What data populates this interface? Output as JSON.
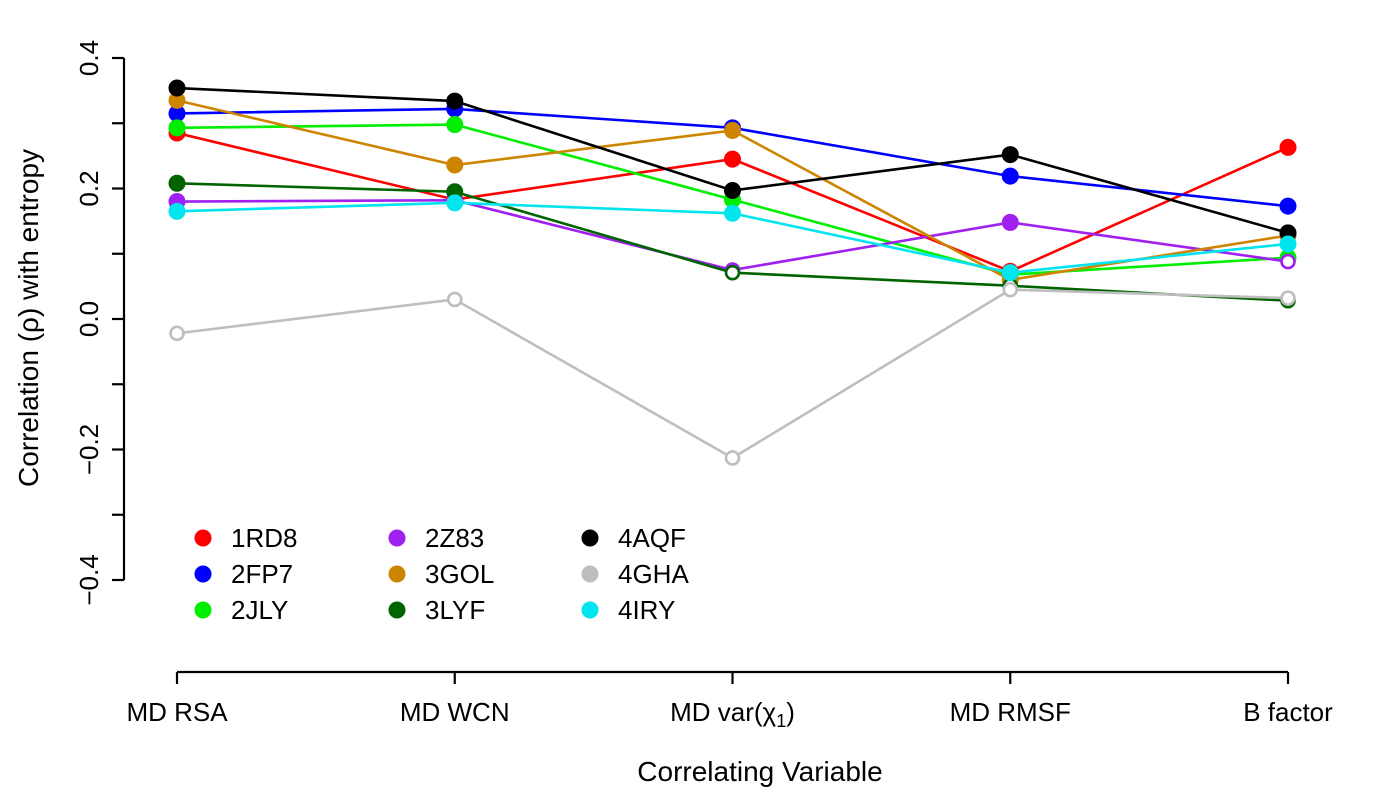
{
  "chart_data": {
    "type": "line",
    "title": "",
    "xlabel": "Correlating Variable",
    "ylabel": "Correlation (ρ) with entropy",
    "categories": [
      "MD RSA",
      "MD WCN",
      "MD var(χ1)",
      "MD RMSF",
      "B factor"
    ],
    "category_parts": [
      {
        "main": "MD RSA",
        "sub": "",
        "close": ""
      },
      {
        "main": "MD WCN",
        "sub": "",
        "close": ""
      },
      {
        "main": "MD var(χ",
        "sub": "1",
        "close": ")"
      },
      {
        "main": "MD RMSF",
        "sub": "",
        "close": ""
      },
      {
        "main": "B factor",
        "sub": "",
        "close": ""
      }
    ],
    "ylim": [
      -0.4,
      0.4
    ],
    "y_ticks": [
      -0.4,
      -0.2,
      0.0,
      0.2,
      0.4
    ],
    "y_tick_labels": [
      "−0.4",
      "−0.2",
      "0.0",
      "0.2",
      "0.4"
    ],
    "grid": false,
    "legend_position": "bottom-left",
    "series": [
      {
        "name": "1RD8",
        "color": "#ff0000",
        "values": [
          0.285,
          0.183,
          0.245,
          0.073,
          0.263
        ],
        "filled": [
          true,
          true,
          true,
          true,
          true
        ]
      },
      {
        "name": "2FP7",
        "color": "#0000ff",
        "values": [
          0.315,
          0.322,
          0.293,
          0.219,
          0.173
        ],
        "filled": [
          true,
          true,
          true,
          true,
          true
        ]
      },
      {
        "name": "2JLY",
        "color": "#00ee00",
        "values": [
          0.293,
          0.298,
          0.183,
          0.068,
          0.094
        ],
        "filled": [
          true,
          true,
          true,
          true,
          true
        ]
      },
      {
        "name": "2Z83",
        "color": "#a020f0",
        "values": [
          0.18,
          0.182,
          0.075,
          0.148,
          0.088
        ],
        "filled": [
          true,
          true,
          false,
          true,
          false
        ]
      },
      {
        "name": "3GOL",
        "color": "#cd8500",
        "values": [
          0.335,
          0.236,
          0.289,
          0.06,
          0.128
        ],
        "filled": [
          true,
          true,
          true,
          true,
          true
        ]
      },
      {
        "name": "3LYF",
        "color": "#006400",
        "values": [
          0.208,
          0.195,
          0.071,
          0.051,
          0.028
        ],
        "filled": [
          true,
          true,
          false,
          false,
          false
        ]
      },
      {
        "name": "4AQF",
        "color": "#000000",
        "values": [
          0.354,
          0.334,
          0.197,
          0.252,
          0.132
        ],
        "filled": [
          true,
          true,
          true,
          true,
          true
        ]
      },
      {
        "name": "4GHA",
        "color": "#bebebe",
        "values": [
          -0.022,
          0.03,
          -0.213,
          0.045,
          0.032
        ],
        "filled": [
          false,
          false,
          false,
          false,
          false
        ]
      },
      {
        "name": "4IRY",
        "color": "#00e5ee",
        "values": [
          0.165,
          0.178,
          0.162,
          0.071,
          0.115
        ],
        "filled": [
          true,
          true,
          true,
          true,
          true
        ]
      }
    ]
  }
}
